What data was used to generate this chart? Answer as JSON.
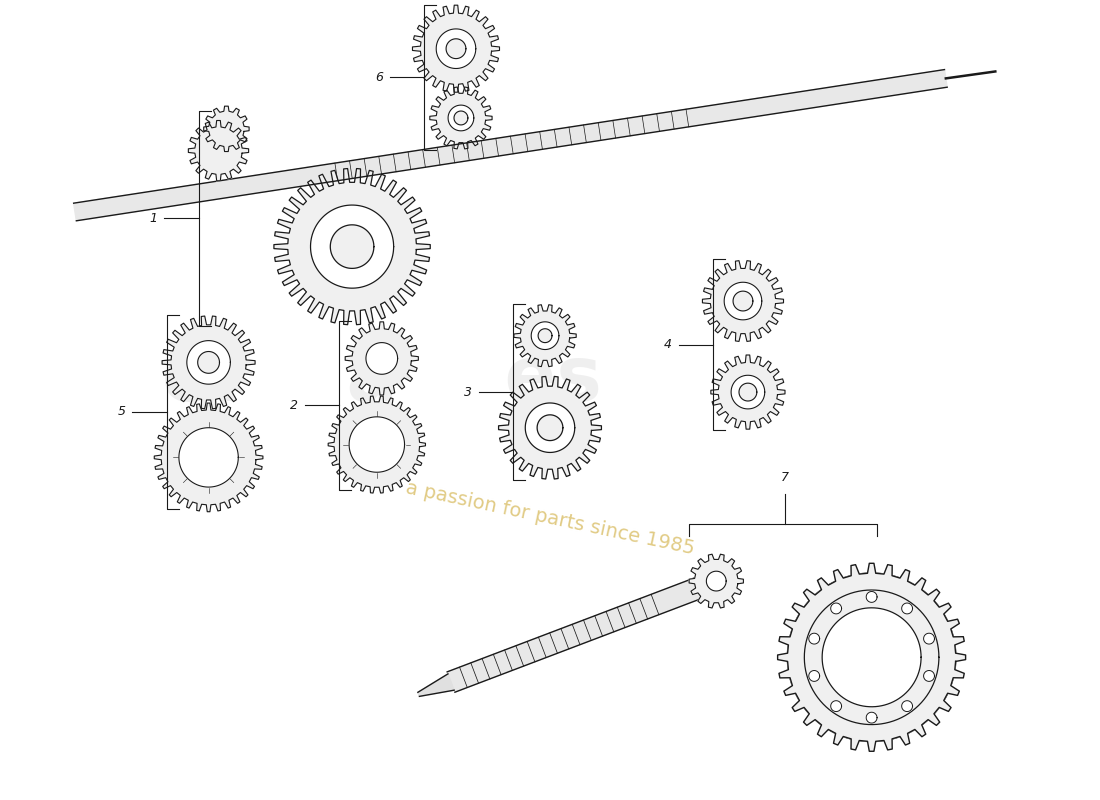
{
  "background_color": "#ffffff",
  "gear_color": "#1a1a1a",
  "gear_fill": "#f0f0f0",
  "gear_stroke": "#222222",
  "label_color": "#1a1a1a",
  "watermark_gray": "#c0c0c0",
  "watermark_gold": "#c8a020",
  "items": [
    {
      "id": 1,
      "label": "1"
    },
    {
      "id": 2,
      "label": "2"
    },
    {
      "id": 3,
      "label": "3"
    },
    {
      "id": 4,
      "label": "4"
    },
    {
      "id": 5,
      "label": "5"
    },
    {
      "id": 6,
      "label": "6"
    },
    {
      "id": 7,
      "label": "7"
    }
  ],
  "shaft_spline_count": 20,
  "ring_gear_bolts": 10
}
